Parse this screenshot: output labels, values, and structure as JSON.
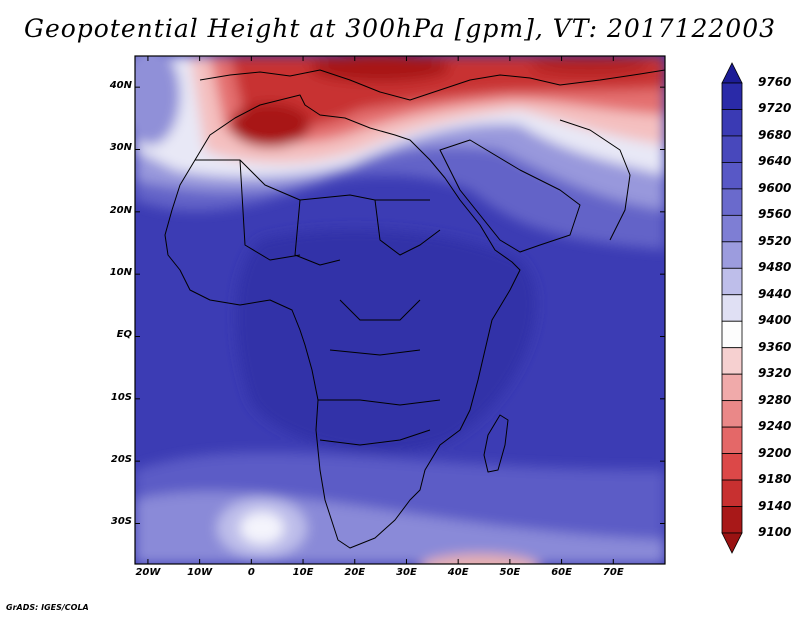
{
  "map": {
    "title": "Geopotential Height at 300hPa [gpm], VT: 2017122003",
    "credit": "GrADS: IGES/COLA",
    "lat_ticks": [
      "40N",
      "30N",
      "20N",
      "10N",
      "EQ",
      "10S",
      "20S",
      "30S"
    ],
    "lat_values": [
      40,
      30,
      20,
      10,
      0,
      -10,
      -20,
      -30
    ],
    "lon_ticks": [
      "20W",
      "10W",
      "0",
      "10E",
      "20E",
      "30E",
      "40E",
      "50E",
      "60E",
      "70E"
    ],
    "lon_values": [
      -20,
      -10,
      0,
      10,
      20,
      30,
      40,
      50,
      60,
      70
    ],
    "lon_range": [
      -22.5,
      80
    ],
    "lat_range": [
      -36.5,
      45
    ]
  },
  "colorbar": {
    "levels": [
      "9760",
      "9720",
      "9680",
      "9640",
      "9600",
      "9560",
      "9520",
      "9480",
      "9440",
      "9400",
      "9360",
      "9320",
      "9280",
      "9240",
      "9200",
      "9180",
      "9140",
      "9100"
    ],
    "colors": [
      "#1c1c96",
      "#2a2aa8",
      "#3a3ab4",
      "#4848bc",
      "#5858c6",
      "#6a6acc",
      "#7e7ed4",
      "#9c9cde",
      "#bebeea",
      "#e0e0f4",
      "#fdfdfd",
      "#f6d0d0",
      "#f0aaaa",
      "#ea8888",
      "#e46868",
      "#dc4848",
      "#c83030",
      "#a81818",
      "#9a1212"
    ]
  }
}
